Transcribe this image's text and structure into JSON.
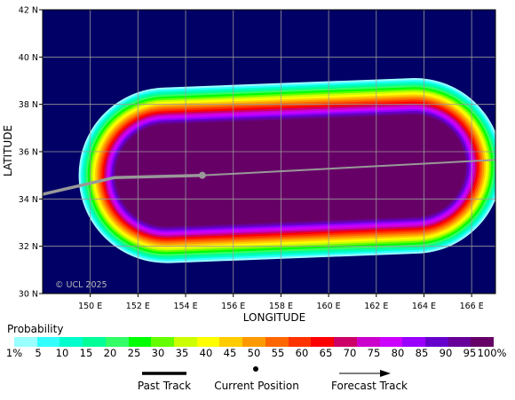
{
  "map": {
    "lat_range": [
      30,
      42
    ],
    "lon_range": [
      148,
      167
    ],
    "lat_ticks": [
      "30 N",
      "32 N",
      "34 N",
      "36 N",
      "38 N",
      "40 N",
      "42 N"
    ],
    "lon_ticks": [
      "150 E",
      "152 E",
      "154 E",
      "156 E",
      "158 E",
      "160 E",
      "162 E",
      "164 E",
      "166 E"
    ],
    "xlabel": "LONGITUDE",
    "ylabel": "LATITUDE",
    "copyright": "© UCL 2025",
    "background_color": "#000066",
    "grid_color": "#9a9a9a",
    "track_color": "#999999"
  },
  "track": {
    "past": [
      [
        148,
        34.2
      ],
      [
        151,
        34.9
      ],
      [
        154.7,
        35.0
      ]
    ],
    "forecast": [
      [
        154.7,
        35.0
      ],
      [
        167,
        35.65
      ]
    ],
    "current_position": [
      154.7,
      35.0
    ]
  },
  "probability_region": {
    "core": [
      [
        153.2,
        35.0
      ],
      [
        163.6,
        35.4
      ]
    ],
    "shape_note": "elongated capsule of strike probability along track"
  },
  "legend": {
    "title": "Probability",
    "labels": [
      "1%",
      "5",
      "10",
      "15",
      "20",
      "25",
      "30",
      "35",
      "40",
      "45",
      "50",
      "55",
      "60",
      "65",
      "70",
      "75",
      "80",
      "85",
      "90",
      "95",
      "100%"
    ],
    "colors": [
      "#99ffff",
      "#33ffff",
      "#00ffcc",
      "#00ff99",
      "#33ff66",
      "#00ff00",
      "#66ff00",
      "#ccff00",
      "#ffff00",
      "#ffcc00",
      "#ff9900",
      "#ff6600",
      "#ff3300",
      "#ff0000",
      "#cc0066",
      "#cc00cc",
      "#cc00ff",
      "#9900ff",
      "#6600cc",
      "#660099",
      "#660066"
    ]
  },
  "key": {
    "past_track": "Past Track",
    "current_position": "Current Position",
    "forecast_track": "Forecast Track"
  }
}
